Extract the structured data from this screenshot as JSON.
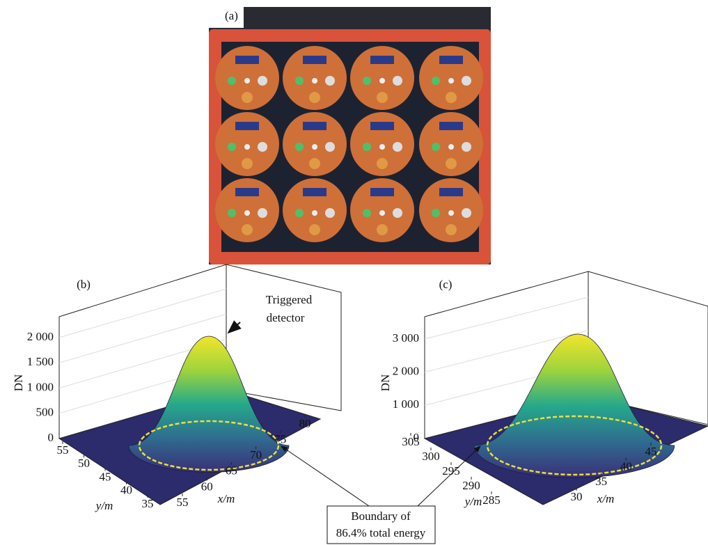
{
  "photo": {
    "label": "(a)"
  },
  "chart_data": [
    {
      "type": "surface3d",
      "label": "(b)",
      "z_label": "DN",
      "x_label": "x/m",
      "y_label": "y/m",
      "zlim": [
        0,
        2000
      ],
      "zticks": [
        0,
        500,
        {
          "value": 1000,
          "label": "1 000"
        },
        {
          "value": 1500,
          "label": "1 500"
        },
        {
          "value": 2000,
          "label": "2 000"
        }
      ],
      "xlim": [
        55,
        80
      ],
      "xticks": [
        55,
        60,
        65,
        70,
        75,
        80
      ],
      "ylim": [
        35,
        55
      ],
      "yticks": [
        35,
        40,
        45,
        50,
        55
      ],
      "annotation": [
        "Triggered",
        "detector"
      ]
    },
    {
      "type": "surface3d",
      "label": "(c)",
      "z_label": "DN",
      "x_label": "x/m",
      "y_label": "y/m",
      "zlim": [
        0,
        3000
      ],
      "zticks": [
        0,
        {
          "value": 1000,
          "label": "1 000"
        },
        {
          "value": 2000,
          "label": "2 000"
        },
        {
          "value": 3000,
          "label": "3 000"
        }
      ],
      "xlim": [
        30,
        45
      ],
      "xticks": [
        30,
        35,
        40,
        45
      ],
      "ylim": [
        285,
        305
      ],
      "yticks": [
        285,
        290,
        295,
        300,
        305
      ]
    }
  ],
  "callout": [
    "Boundary of",
    "86.4% total energy"
  ]
}
